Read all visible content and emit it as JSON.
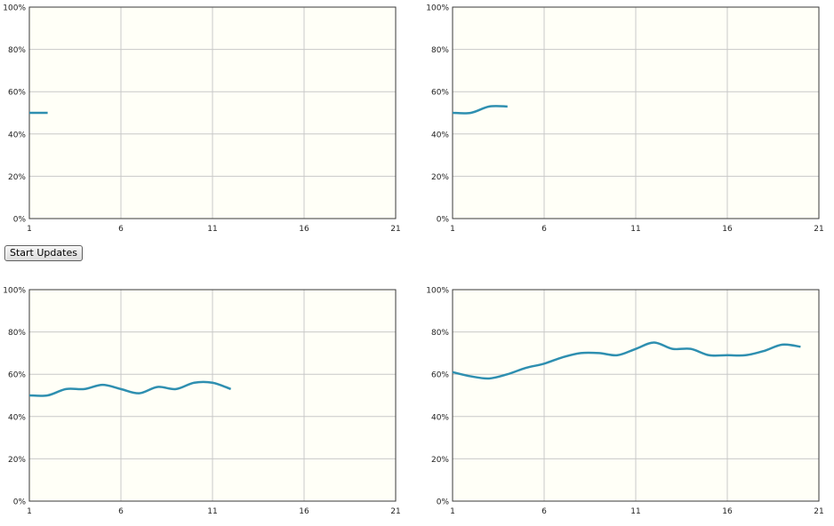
{
  "controls": {
    "start_label": "Start Updates"
  },
  "colors": {
    "plot_background": "#fffff7",
    "plot_border": "#3a3a3a",
    "grid": "#c8c8c8",
    "series": "#2e8fb0",
    "tick_text": "#222222"
  },
  "chart_data": [
    {
      "type": "line",
      "xlim": [
        1,
        21
      ],
      "ylim": [
        0,
        100
      ],
      "x_ticks": [
        "1",
        "6",
        "11",
        "16",
        "21"
      ],
      "y_ticks": [
        "0%",
        "20%",
        "40%",
        "60%",
        "80%",
        "100%"
      ],
      "grid": true,
      "series": [
        {
          "x": [
            1,
            2
          ],
          "y": [
            50,
            50
          ]
        }
      ]
    },
    {
      "type": "line",
      "xlim": [
        1,
        21
      ],
      "ylim": [
        0,
        100
      ],
      "x_ticks": [
        "1",
        "6",
        "11",
        "16",
        "21"
      ],
      "y_ticks": [
        "0%",
        "20%",
        "40%",
        "60%",
        "80%",
        "100%"
      ],
      "grid": true,
      "series": [
        {
          "x": [
            1,
            2,
            3,
            4
          ],
          "y": [
            50,
            50,
            53,
            53
          ]
        }
      ]
    },
    {
      "type": "line",
      "xlim": [
        1,
        21
      ],
      "ylim": [
        0,
        100
      ],
      "x_ticks": [
        "1",
        "6",
        "11",
        "16",
        "21"
      ],
      "y_ticks": [
        "0%",
        "20%",
        "40%",
        "60%",
        "80%",
        "100%"
      ],
      "grid": true,
      "series": [
        {
          "x": [
            1,
            2,
            3,
            4,
            5,
            6,
            7,
            8,
            9,
            10,
            11,
            12
          ],
          "y": [
            50,
            50,
            53,
            53,
            55,
            53,
            51,
            54,
            53,
            56,
            56,
            53
          ]
        }
      ]
    },
    {
      "type": "line",
      "xlim": [
        1,
        21
      ],
      "ylim": [
        0,
        100
      ],
      "x_ticks": [
        "1",
        "6",
        "11",
        "16",
        "21"
      ],
      "y_ticks": [
        "0%",
        "20%",
        "40%",
        "60%",
        "80%",
        "100%"
      ],
      "grid": true,
      "series": [
        {
          "x": [
            1,
            2,
            3,
            4,
            5,
            6,
            7,
            8,
            9,
            10,
            11,
            12,
            13,
            14,
            15,
            16,
            17,
            18,
            19,
            20
          ],
          "y": [
            61,
            59,
            58,
            60,
            63,
            65,
            68,
            70,
            70,
            69,
            72,
            75,
            72,
            72,
            69,
            69,
            69,
            71,
            74,
            73
          ]
        }
      ]
    }
  ]
}
